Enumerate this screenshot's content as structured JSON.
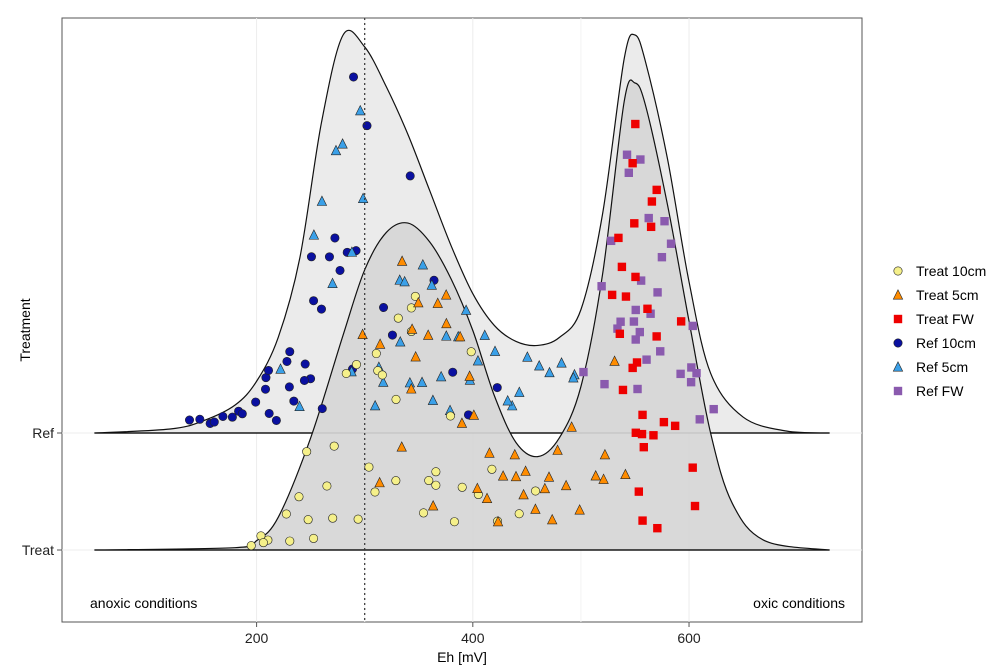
{
  "chart_data": {
    "type": "scatter",
    "subtype": "ridgeline-density-with-jitter",
    "xlabel": "Eh [mV]",
    "ylabel": "Treatment",
    "xlim": [
      20,
      760
    ],
    "x_ticks": [
      200,
      400,
      600
    ],
    "y_categories": [
      "Treat",
      "Ref"
    ],
    "reference_line_x": 300,
    "grid": true,
    "legend_position": "right",
    "annotations": {
      "left": "anoxic conditions",
      "right": "oxic conditions"
    },
    "densities": [
      {
        "group": "Ref",
        "x": [
          50,
          120,
          150,
          180,
          200,
          220,
          240,
          260,
          280,
          300,
          320,
          340,
          360,
          380,
          400,
          420,
          440,
          460,
          480,
          500,
          520,
          540,
          550,
          560,
          580,
          600,
          620,
          650,
          690,
          730
        ],
        "y": [
          0.0,
          0.01,
          0.03,
          0.07,
          0.13,
          0.24,
          0.44,
          0.78,
          1.0,
          0.97,
          0.87,
          0.75,
          0.61,
          0.47,
          0.35,
          0.27,
          0.23,
          0.22,
          0.24,
          0.31,
          0.55,
          0.94,
          1.0,
          0.93,
          0.69,
          0.38,
          0.15,
          0.04,
          0.005,
          0.0
        ]
      },
      {
        "group": "Treat",
        "x": [
          50,
          180,
          200,
          220,
          250,
          280,
          300,
          320,
          340,
          360,
          380,
          400,
          420,
          440,
          460,
          480,
          500,
          520,
          540,
          550,
          560,
          580,
          600,
          620,
          640,
          670,
          730
        ],
        "y": [
          0.0,
          0.005,
          0.02,
          0.07,
          0.24,
          0.46,
          0.6,
          0.68,
          0.7,
          0.66,
          0.58,
          0.47,
          0.33,
          0.23,
          0.2,
          0.24,
          0.35,
          0.59,
          0.96,
          1.0,
          0.95,
          0.74,
          0.49,
          0.25,
          0.1,
          0.02,
          0.0
        ]
      }
    ],
    "series": [
      {
        "name": "Treat 10cm",
        "group": "Treat",
        "color": "#f5f08a",
        "marker": "circle",
        "x": [
          195,
          205,
          215,
          225,
          235,
          245,
          255,
          265,
          275,
          285,
          295,
          305,
          315,
          325,
          335,
          345,
          355,
          365,
          375,
          385,
          395,
          405,
          415,
          425,
          445,
          460,
          210,
          230,
          250,
          270,
          290,
          310,
          330,
          350,
          370,
          390,
          320,
          340,
          360,
          300
        ]
      },
      {
        "name": "Treat 5cm",
        "group": "Treat",
        "color": "#ff8c00",
        "marker": "triangle",
        "x": [
          300,
          315,
          330,
          345,
          360,
          375,
          390,
          405,
          420,
          435,
          450,
          465,
          480,
          495,
          510,
          525,
          540,
          330,
          350,
          370,
          390,
          410,
          430,
          450,
          470,
          490,
          310,
          340,
          380,
          420,
          460,
          500,
          360,
          400,
          440,
          520,
          345,
          395,
          475,
          530
        ]
      },
      {
        "name": "Treat FW",
        "group": "Treat",
        "color": "#ee0000",
        "marker": "square",
        "x": [
          530,
          535,
          540,
          545,
          548,
          550,
          552,
          555,
          558,
          560,
          565,
          570,
          575,
          580,
          590,
          600,
          610,
          540,
          545,
          550,
          555,
          560,
          565,
          548,
          552,
          556,
          542,
          562,
          572,
          585
        ]
      },
      {
        "name": "Ref 10cm",
        "group": "Ref",
        "color": "#0a10a0",
        "marker": "circle",
        "x": [
          135,
          145,
          155,
          165,
          175,
          185,
          195,
          205,
          215,
          225,
          235,
          245,
          255,
          265,
          275,
          285,
          295,
          305,
          315,
          330,
          345,
          360,
          380,
          400,
          420,
          170,
          190,
          210,
          230,
          250,
          270,
          290,
          210,
          230,
          250,
          265,
          285,
          240,
          220,
          260
        ]
      },
      {
        "name": "Ref 5cm",
        "group": "Ref",
        "color": "#3aa0e8",
        "marker": "triangle",
        "x": [
          225,
          240,
          255,
          270,
          285,
          300,
          315,
          330,
          345,
          360,
          375,
          390,
          405,
          420,
          435,
          450,
          465,
          480,
          495,
          260,
          280,
          300,
          320,
          340,
          360,
          380,
          400,
          270,
          310,
          350,
          390,
          430,
          470,
          330,
          370,
          410,
          290,
          355,
          445,
          490
        ]
      },
      {
        "name": "Ref FW",
        "group": "Ref",
        "color": "#8a5aae",
        "marker": "square",
        "x": [
          505,
          515,
          525,
          535,
          545,
          550,
          555,
          560,
          565,
          570,
          580,
          590,
          600,
          610,
          620,
          520,
          540,
          548,
          552,
          556,
          562,
          572,
          585,
          598,
          612,
          530,
          545,
          558,
          575,
          605
        ]
      }
    ]
  }
}
